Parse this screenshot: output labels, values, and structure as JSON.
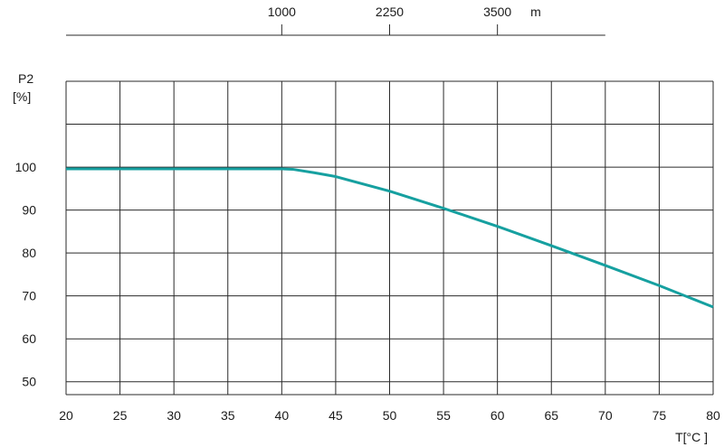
{
  "chart_data": {
    "type": "line",
    "title": "",
    "xlabel": "T[°C ]",
    "ylabel_line1": "P2",
    "ylabel_line2": "[%]",
    "x_ticks": [
      20,
      25,
      30,
      35,
      40,
      45,
      50,
      55,
      60,
      65,
      70,
      75,
      80
    ],
    "y_ticks": [
      50,
      60,
      70,
      80,
      90,
      100
    ],
    "xlim": [
      20,
      80
    ],
    "ylim": [
      47,
      120
    ],
    "grid": true,
    "series": [
      {
        "color": "#16a0a0",
        "x": [
          20,
          40,
          41,
          43,
          45,
          50,
          55,
          60,
          65,
          70,
          75,
          80
        ],
        "y": [
          99.6,
          99.6,
          99.5,
          98.7,
          97.8,
          94.4,
          90.4,
          86.2,
          81.7,
          77.1,
          72.4,
          67.4
        ]
      }
    ],
    "secondary_axis": {
      "unit": "m",
      "ticks": [
        {
          "label": "1000",
          "at_temperature": 40
        },
        {
          "label": "2250",
          "at_temperature": 50
        },
        {
          "label": "3500",
          "at_temperature": 60
        }
      ],
      "range_temperature": [
        20,
        70
      ]
    }
  }
}
